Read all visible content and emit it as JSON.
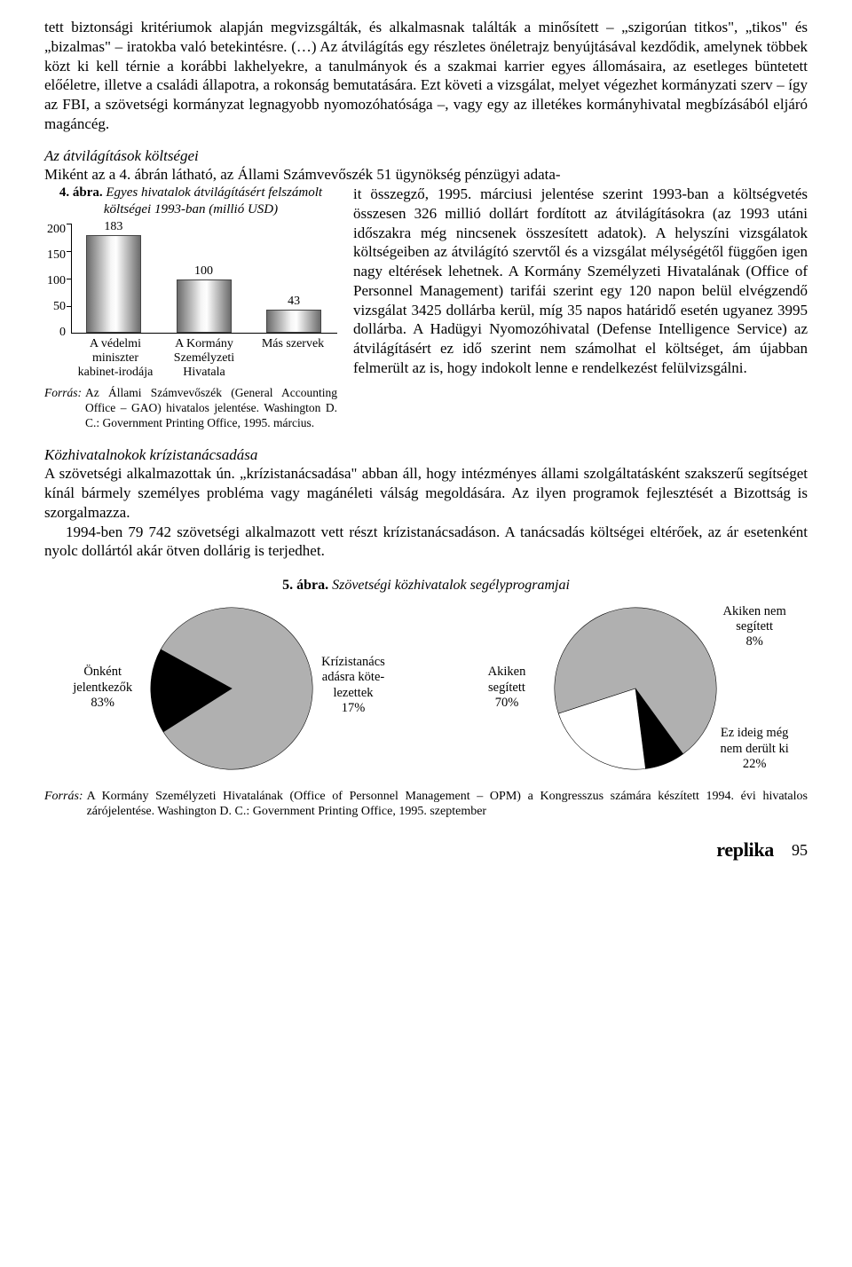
{
  "para1": "tett biztonsági kritériumok alapján megvizsgálták, és alkalmasnak találták a minősített – „szigorúan titkos\", „tikos\" és „bizalmas\" – iratokba való betekintésre. (…) Az átvilágítás egy részletes önéletrajz benyújtásával kezdődik, amelynek többek közt ki kell térnie a korábbi lakhelyekre, a tanulmányok és a szakmai karrier egyes állomásaira, az esetleges büntetett előéletre, illetve a családi állapotra, a rokonság bemutatására. Ezt követi a vizsgálat, melyet végezhet kormányzati szerv – így az FBI, a szövetségi kormányzat legnagyobb nyomozóhatósága –, vagy egy az illetékes kormányhivatal megbízásából eljáró magáncég.",
  "sec1_title": "Az átvilágítások költségei",
  "sec1_intro": "Miként az a 4. ábrán látható, az Állami Számvevőszék 51 ügynökség pénzügyi adata-",
  "fig4": {
    "label_bold": "4. ábra.",
    "label_rest": " Egyes hivatalok átvilágításért felszámolt költségei 1993-ban (millió USD)",
    "yticks": [
      "200",
      "150",
      "100",
      "50",
      "0"
    ],
    "bars": [
      {
        "value": 183,
        "label": "A védelmi miniszter kabinet-irodája"
      },
      {
        "value": 100,
        "label": "A Kormány Személyzeti Hivatala"
      },
      {
        "value": 43,
        "label": "Más szervek"
      }
    ],
    "ymax": 200,
    "source_label": "Forrás:",
    "source_text": "Az Állami Számvevőszék (General Accounting Office – GAO) hivatalos jelentése. Washington D. C.: Government Printing Office, 1995. március."
  },
  "right_text": "it összegző, 1995. márciusi jelentése szerint 1993-ban a költségvetés összesen 326 millió dollárt fordított az átvilágításokra (az 1993 utáni időszakra még nincsenek összesített adatok). A helyszíni vizsgálatok költségeiben az átvilágító szervtől és a vizsgálat mélységétől függően igen nagy eltérések lehetnek. A Kormány Személyzeti Hivatalának (Office of Personnel Management) tarifái szerint egy 120 napon belül elvégzendő vizsgálat 3425 dollárba kerül, míg 35 napos határidő esetén ugyanez 3995 dollárba. A Hadügyi Nyomozóhivatal (Defense Intelligence Service) az átvilágításért ez idő szerint nem számolhat el költséget, ám újabban felmerült az is, hogy indokolt lenne e rendelkezést felülvizsgálni.",
  "sec2_title": "Közhivatalnokok krízistanácsadása",
  "sec2_p1": "A szövetségi alkalmazottak ún. „krízistanácsadása\" abban áll, hogy intézményes állami szolgáltatásként szakszerű segítséget kínál bármely személyes probléma vagy magánéleti válság megoldására. Az ilyen programok fejlesztését a Bizottság is szorgalmazza.",
  "sec2_p2": "1994-ben 79 742 szövetségi alkalmazott vett részt krízistanácsadáson. A tanácsadás költségei eltérőek, az ár esetenként nyolc dollártól akár ötven dollárig is terjedhet.",
  "fig5": {
    "label_bold": "5. ábra.",
    "label_rest": " Szövetségi közhivatalok segélyprogramjai",
    "pie1": {
      "slices": [
        {
          "label": "Önként jelentkezők 83%",
          "value": 83,
          "color": "#b0b0b0"
        },
        {
          "label": "Krízistanácsadásra kötelezettek 17%",
          "value": 17,
          "color": "#000000"
        }
      ],
      "left_label": "Önként\njelentkezők\n83%",
      "right_label": "Krízistanács\nadásra köte-\nlezettek\n17%"
    },
    "pie2": {
      "slices": [
        {
          "label": "Akiken segített 70%",
          "value": 70,
          "color": "#b0b0b0"
        },
        {
          "label": "Akiken nem segített 8%",
          "value": 8,
          "color": "#000000"
        },
        {
          "label": "Ez ideig még nem derült ki 22%",
          "value": 22,
          "color": "#ffffff"
        }
      ],
      "left_label": "Akiken\nsegített\n70%",
      "right_label_top": "Akiken nem\nsegített\n8%",
      "right_label_bottom": "Ez ideig még\nnem derült ki\n22%"
    },
    "source_label": "Forrás:",
    "source_text": "A Kormány Személyzeti Hivatalának (Office of Personnel Management – OPM) a Kongresszus számára készített 1994. évi hivatalos zárójelentése. Washington D. C.: Government Printing Office, 1995. szeptember"
  },
  "footer": {
    "replika": "replika",
    "page": "95"
  }
}
